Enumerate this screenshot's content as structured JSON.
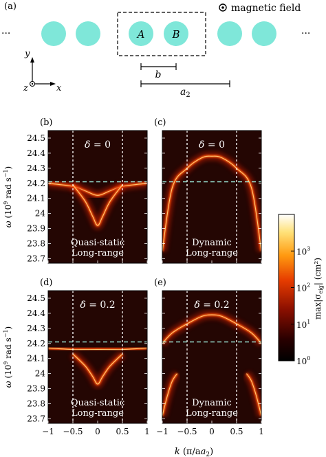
{
  "schematic": {
    "panel_label": "(a)",
    "legend_text": "magnetic field",
    "ellipsis": "···",
    "label_A": "A",
    "label_B": "B",
    "label_b": "b",
    "label_a2": "a",
    "label_a2_sub": "2",
    "axis_y": "y",
    "axis_z": "z",
    "axis_x": "x",
    "particle_color": "#7fe7d9"
  },
  "colorbar": {
    "label_main": "max|σ",
    "label_sub": "eig",
    "label_unit": "| (cm²)",
    "ticks": [
      {
        "base": "10",
        "exp": "0",
        "value": 1
      },
      {
        "base": "10",
        "exp": "1",
        "value": 10
      },
      {
        "base": "10",
        "exp": "2",
        "value": 100
      },
      {
        "base": "10",
        "exp": "3",
        "value": 1000
      }
    ],
    "range": [
      1,
      10000
    ],
    "scale": "log",
    "colormap": "black-red-orange-yellow-white"
  },
  "axes": {
    "ylabel_main": "ω (10",
    "ylabel_exp": "9",
    "ylabel_unit": " rad s",
    "ylabel_uexp": "−1",
    "ylabel_close": ")",
    "xlabel_k": "k",
    "xlabel_rest": " (π/a",
    "xlabel_sub": "2",
    "xlabel_close": ")",
    "yticks_top": [
      "24.5",
      "24.4",
      "24.3",
      "24.2",
      "24.1",
      "24",
      "23.9",
      "23.8",
      "23.7"
    ],
    "yticks_bottom": [
      "24.5",
      "24.4",
      "24.3",
      "24.2",
      "24.1",
      "24",
      "23.9",
      "23.8",
      "23.7"
    ],
    "xticks": [
      "−1",
      "−0.5",
      "0",
      "0.5",
      "1"
    ]
  },
  "chart_data": [
    {
      "type": "heatmap",
      "panel": "(b)",
      "annotation": "δ = 0",
      "model_line1": "Quasi-static",
      "model_line2": "Long-range",
      "x_range": [
        -1,
        1
      ],
      "y_range": [
        23.67,
        24.55
      ],
      "vertical_lines_x": [
        -0.5,
        0.5
      ],
      "horizontal_line_y": 24.21,
      "bands": [
        {
          "shape": "flat-dip",
          "k": [
            -1,
            -0.5,
            -0.25,
            0,
            0.25,
            0.5,
            1
          ],
          "omega": [
            24.2,
            24.18,
            24.15,
            24.12,
            24.15,
            24.18,
            24.2
          ]
        },
        {
          "shape": "cusp",
          "k": [
            -0.5,
            -0.25,
            -0.1,
            0,
            0.1,
            0.25,
            0.5
          ],
          "omega": [
            24.19,
            24.08,
            23.98,
            23.92,
            23.98,
            24.08,
            24.19
          ]
        }
      ]
    },
    {
      "type": "heatmap",
      "panel": "(c)",
      "annotation": "δ = 0",
      "model_line1": "Dynamic",
      "model_line2": "Long-range",
      "x_range": [
        -1,
        1
      ],
      "y_range": [
        23.67,
        24.55
      ],
      "vertical_lines_x": [
        -0.5,
        0.5
      ],
      "horizontal_line_y": 24.21,
      "bands": [
        {
          "shape": "arch",
          "k": [
            -1,
            -0.8,
            -0.5,
            -0.2,
            0,
            0.2,
            0.5,
            0.8,
            1
          ],
          "omega": [
            23.75,
            24.17,
            24.3,
            24.37,
            24.38,
            24.37,
            24.3,
            24.17,
            23.75
          ]
        }
      ]
    },
    {
      "type": "heatmap",
      "panel": "(d)",
      "annotation": "δ = 0.2",
      "model_line1": "Quasi-static",
      "model_line2": "Long-range",
      "x_range": [
        -1,
        1
      ],
      "y_range": [
        23.67,
        24.55
      ],
      "vertical_lines_x": [
        -0.5,
        0.5
      ],
      "horizontal_line_y": 24.21,
      "bands": [
        {
          "shape": "flat",
          "k": [
            -1,
            -0.5,
            0,
            0.5,
            1
          ],
          "omega": [
            24.17,
            24.16,
            24.16,
            24.16,
            24.17
          ]
        },
        {
          "shape": "cusp",
          "k": [
            -0.5,
            -0.25,
            -0.1,
            0,
            0.1,
            0.25,
            0.5
          ],
          "omega": [
            24.13,
            24.05,
            23.98,
            23.93,
            23.98,
            24.05,
            24.13
          ]
        }
      ]
    },
    {
      "type": "heatmap",
      "panel": "(e)",
      "annotation": "δ = 0.2",
      "model_line1": "Dynamic",
      "model_line2": "Long-range",
      "x_range": [
        -1,
        1
      ],
      "y_range": [
        23.67,
        24.55
      ],
      "vertical_lines_x": [
        -0.5,
        0.5
      ],
      "horizontal_line_y": 24.21,
      "bands": [
        {
          "shape": "arch",
          "k": [
            -1,
            -0.8,
            -0.5,
            -0.2,
            0,
            0.2,
            0.5,
            0.8,
            1
          ],
          "omega": [
            24.2,
            24.27,
            24.33,
            24.38,
            24.39,
            24.38,
            24.33,
            24.27,
            24.2
          ]
        },
        {
          "shape": "lower-branch",
          "k": [
            -1,
            -0.9,
            -0.8,
            -0.7
          ],
          "omega": [
            23.72,
            23.85,
            23.95,
            24.0
          ]
        },
        {
          "shape": "lower-branch",
          "k": [
            0.7,
            0.8,
            0.9,
            1
          ],
          "omega": [
            24.0,
            23.95,
            23.85,
            23.72
          ]
        }
      ]
    }
  ]
}
